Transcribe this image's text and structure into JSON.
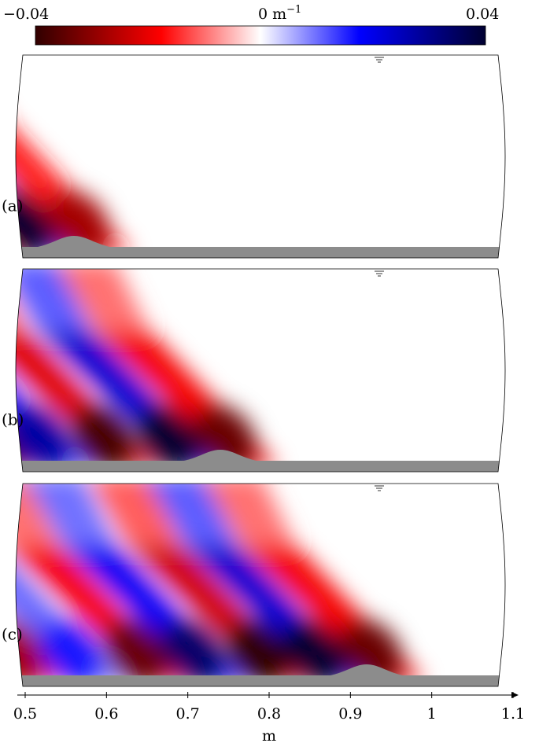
{
  "colorbar": {
    "min_label": "−0.04",
    "mid_label": "0 m",
    "mid_exp": "−1",
    "max_label": "0.04",
    "min": -0.04,
    "max": 0.04,
    "colormap": "diverging red-white-blue",
    "color_neg": "#a00000",
    "color_zero": "#ffffff",
    "color_pos": "#0000ff"
  },
  "panels": [
    {
      "label": "(a)"
    },
    {
      "label": "(b)"
    },
    {
      "label": "(c)"
    }
  ],
  "axis": {
    "xlabel": "m"
  },
  "chart_data": {
    "type": "heatmap",
    "xlabel": "m",
    "xlim": [
      0.5,
      1.1
    ],
    "x_ticks": [
      0.5,
      0.6,
      0.7,
      0.8,
      0.9,
      1,
      1.1
    ],
    "x_tick_labels": [
      "0.5",
      "0.6",
      "0.7",
      "0.8",
      "0.9",
      "1",
      "1.1"
    ],
    "value_range": [
      -0.04,
      0.04
    ],
    "value_unit": "m⁻¹",
    "panels": [
      {
        "label": "(a)",
        "bump_center_x": 0.56,
        "bands": [
          {
            "sign": "positive",
            "x_at_bed": 0.53,
            "peak": 0.04
          },
          {
            "sign": "negative",
            "x_at_bed": 0.6,
            "peak": -0.03
          },
          {
            "sign": "negative",
            "x_at_bed": 0.5,
            "peak": -0.015
          }
        ]
      },
      {
        "label": "(b)",
        "bump_center_x": 0.74,
        "bands": [
          {
            "sign": "negative",
            "x_at_bed": 0.78,
            "peak": -0.035
          },
          {
            "sign": "positive",
            "x_at_bed": 0.71,
            "peak": 0.04
          },
          {
            "sign": "negative",
            "x_at_bed": 0.63,
            "peak": -0.038
          },
          {
            "sign": "positive",
            "x_at_bed": 0.55,
            "peak": 0.03
          },
          {
            "sign": "negative",
            "x_at_bed": 0.5,
            "peak": -0.035
          }
        ]
      },
      {
        "label": "(c)",
        "bump_center_x": 0.92,
        "bands": [
          {
            "sign": "negative",
            "x_at_bed": 0.96,
            "peak": -0.035
          },
          {
            "sign": "positive",
            "x_at_bed": 0.89,
            "peak": 0.04
          },
          {
            "sign": "negative",
            "x_at_bed": 0.82,
            "peak": -0.04
          },
          {
            "sign": "positive",
            "x_at_bed": 0.74,
            "peak": 0.035
          },
          {
            "sign": "negative",
            "x_at_bed": 0.67,
            "peak": -0.035
          },
          {
            "sign": "positive",
            "x_at_bed": 0.59,
            "peak": 0.02
          },
          {
            "sign": "negative",
            "x_at_bed": 0.52,
            "peak": -0.03
          }
        ]
      }
    ]
  }
}
